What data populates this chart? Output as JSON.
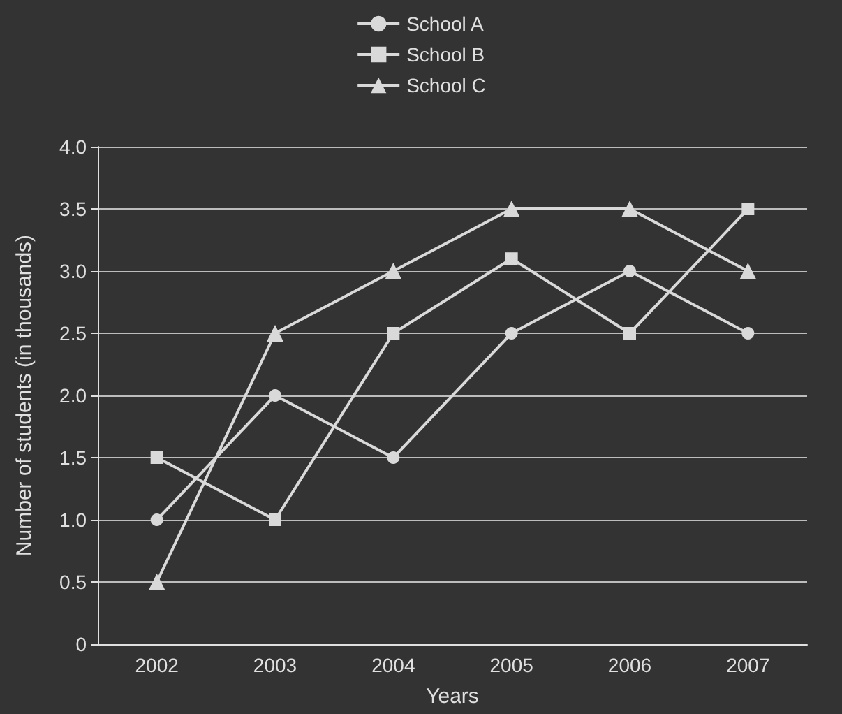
{
  "chart_data": {
    "type": "line",
    "xlabel": "Years",
    "ylabel": "Number of students (in thousands)",
    "categories": [
      "2002",
      "2003",
      "2004",
      "2005",
      "2006",
      "2007"
    ],
    "series": [
      {
        "name": "School A",
        "color": "#d9d9d9",
        "marker": "circle",
        "values": [
          1.0,
          2.0,
          1.5,
          2.5,
          3.0,
          2.5
        ]
      },
      {
        "name": "School B",
        "color": "#d9d9d9",
        "marker": "square",
        "values": [
          1.5,
          1.0,
          2.5,
          3.1,
          2.5,
          3.5
        ]
      },
      {
        "name": "School C",
        "color": "#d9d9d9",
        "marker": "triangle",
        "values": [
          0.5,
          2.5,
          3.0,
          3.5,
          3.5,
          3.0
        ]
      }
    ],
    "ylim": [
      0,
      4
    ],
    "yticks": [
      {
        "value": 0,
        "label": "0"
      },
      {
        "value": 0.5,
        "label": "0.5"
      },
      {
        "value": 1,
        "label": "1.0"
      },
      {
        "value": 1.5,
        "label": "1.5"
      },
      {
        "value": 2,
        "label": "2.0"
      },
      {
        "value": 2.5,
        "label": "2.5"
      },
      {
        "value": 3,
        "label": "3.0"
      },
      {
        "value": 3.5,
        "label": "3.5"
      },
      {
        "value": 4,
        "label": "4.0"
      }
    ],
    "grid": "y",
    "legend": "top",
    "line_style": "solid"
  }
}
